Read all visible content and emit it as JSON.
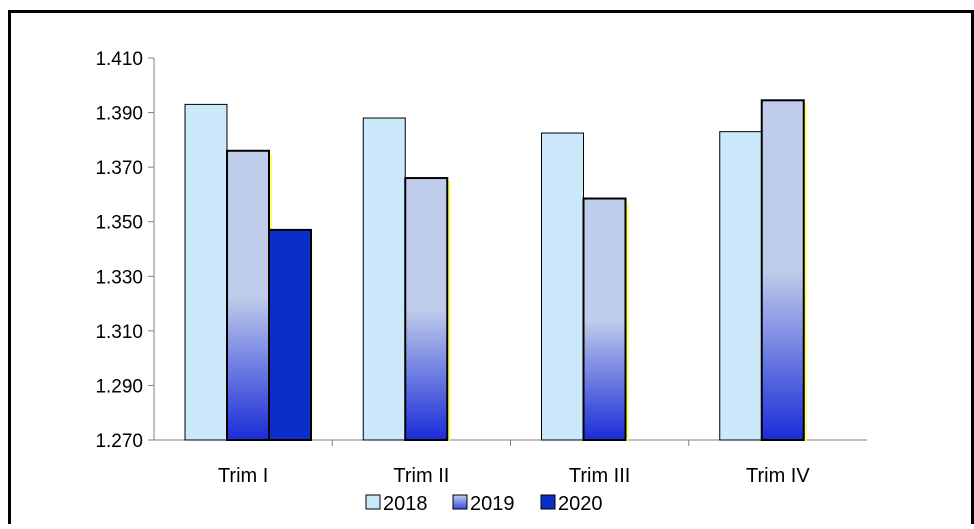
{
  "chart_data": {
    "type": "bar",
    "categories": [
      "Trim I",
      "Trim II",
      "Trim III",
      "Trim IV"
    ],
    "series": [
      {
        "name": "2018",
        "values": [
          1.393,
          1.388,
          1.3825,
          1.383
        ]
      },
      {
        "name": "2019",
        "values": [
          1.376,
          1.366,
          1.3585,
          1.3945
        ]
      },
      {
        "name": "2020",
        "values": [
          1.347,
          null,
          null,
          null
        ]
      }
    ],
    "yticks": [
      "1.270",
      "1.290",
      "1.310",
      "1.330",
      "1.350",
      "1.370",
      "1.390",
      "1.410"
    ],
    "ylim": [
      1.27,
      1.41
    ],
    "legend_position": "bottom",
    "grid": false,
    "colors": {
      "2018": "#cce8fb",
      "2019_top": "#c0cdea",
      "2019_bottom": "#1a2cd8",
      "2020": "#0a2fc8",
      "shadow": "#ffff66"
    }
  }
}
